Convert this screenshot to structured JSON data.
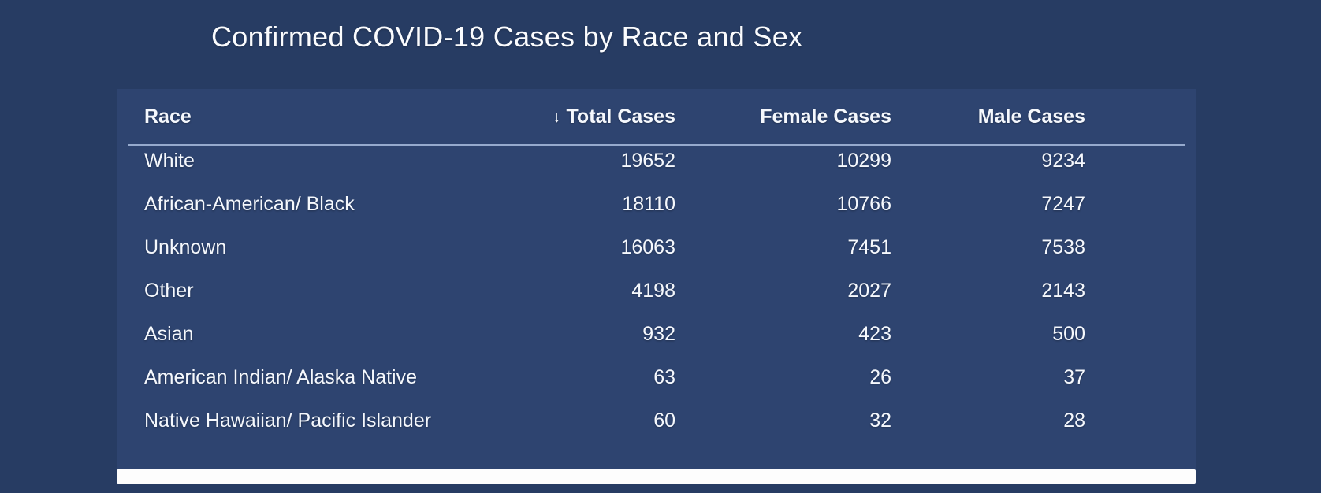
{
  "colors": {
    "page_bg": "#273c63",
    "card_bg": "#2e4470",
    "text": "#f5f8fd",
    "header_underline": "#96aacd",
    "scrollbar": "#fdfdfd"
  },
  "chart_data": {
    "type": "table",
    "title": "Confirmed COVID-19 Cases by Race and Sex",
    "legend_position": "none",
    "sorted_by": "Total Cases",
    "sort_direction": "descending",
    "columns": [
      {
        "label": "Race",
        "align": "left"
      },
      {
        "label": "Total Cases",
        "align": "right",
        "sort_icon": "↓"
      },
      {
        "label": "Female Cases",
        "align": "right"
      },
      {
        "label": "Male Cases",
        "align": "right"
      }
    ],
    "rows": [
      {
        "race": "White",
        "total": "19652",
        "female": "10299",
        "male": "9234"
      },
      {
        "race": "African-American/ Black",
        "total": "18110",
        "female": "10766",
        "male": "7247"
      },
      {
        "race": "Unknown",
        "total": "16063",
        "female": "7451",
        "male": "7538"
      },
      {
        "race": "Other",
        "total": "4198",
        "female": "2027",
        "male": "2143"
      },
      {
        "race": "Asian",
        "total": "932",
        "female": "423",
        "male": "500"
      },
      {
        "race": "American Indian/ Alaska Native",
        "total": "63",
        "female": "26",
        "male": "37"
      },
      {
        "race": "Native Hawaiian/ Pacific Islander",
        "total": "60",
        "female": "32",
        "male": "28"
      }
    ]
  }
}
